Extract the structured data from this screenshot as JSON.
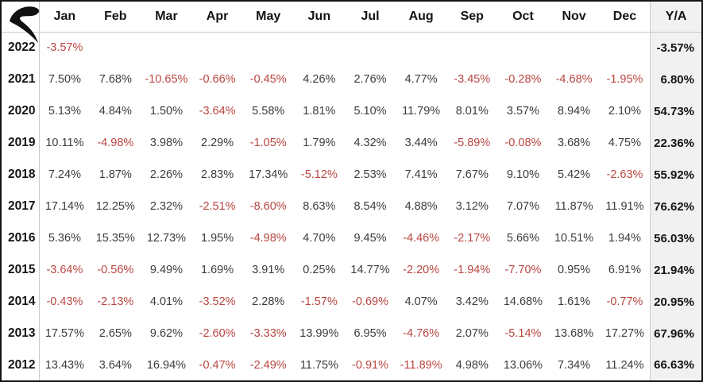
{
  "header": {
    "logo_icon": "r-swoosh-logo-icon",
    "columns": [
      "Jan",
      "Feb",
      "Mar",
      "Apr",
      "May",
      "Jun",
      "Jul",
      "Aug",
      "Sep",
      "Oct",
      "Nov",
      "Dec",
      "Y/A"
    ]
  },
  "table": {
    "rows": [
      {
        "year": "2022",
        "values": [
          "-3.57%",
          "",
          "",
          "",
          "",
          "",
          "",
          "",
          "",
          "",
          "",
          ""
        ],
        "ya": "-3.57%"
      },
      {
        "year": "2021",
        "values": [
          "7.50%",
          "7.68%",
          "-10.65%",
          "-0.66%",
          "-0.45%",
          "4.26%",
          "2.76%",
          "4.77%",
          "-3.45%",
          "-0.28%",
          "-4.68%",
          "-1.95%"
        ],
        "ya": "6.80%"
      },
      {
        "year": "2020",
        "values": [
          "5.13%",
          "4.84%",
          "1.50%",
          "-3.64%",
          "5.58%",
          "1.81%",
          "5.10%",
          "11.79%",
          "8.01%",
          "3.57%",
          "8.94%",
          "2.10%"
        ],
        "ya": "54.73%"
      },
      {
        "year": "2019",
        "values": [
          "10.11%",
          "-4.98%",
          "3.98%",
          "2.29%",
          "-1.05%",
          "1.79%",
          "4.32%",
          "3.44%",
          "-5.89%",
          "-0.08%",
          "3.68%",
          "4.75%"
        ],
        "ya": "22.36%"
      },
      {
        "year": "2018",
        "values": [
          "7.24%",
          "1.87%",
          "2.26%",
          "2.83%",
          "17.34%",
          "-5.12%",
          "2.53%",
          "7.41%",
          "7.67%",
          "9.10%",
          "5.42%",
          "-2.63%"
        ],
        "ya": "55.92%"
      },
      {
        "year": "2017",
        "values": [
          "17.14%",
          "12.25%",
          "2.32%",
          "-2.51%",
          "-8.60%",
          "8.63%",
          "8.54%",
          "4.88%",
          "3.12%",
          "7.07%",
          "11.87%",
          "11.91%"
        ],
        "ya": "76.62%"
      },
      {
        "year": "2016",
        "values": [
          "5.36%",
          "15.35%",
          "12.73%",
          "1.95%",
          "-4.98%",
          "4.70%",
          "9.45%",
          "-4.46%",
          "-2.17%",
          "5.66%",
          "10.51%",
          "1.94%"
        ],
        "ya": "56.03%"
      },
      {
        "year": "2015",
        "values": [
          "-3.64%",
          "-0.56%",
          "9.49%",
          "1.69%",
          "3.91%",
          "0.25%",
          "14.77%",
          "-2.20%",
          "-1.94%",
          "-7.70%",
          "0.95%",
          "6.91%"
        ],
        "ya": "21.94%"
      },
      {
        "year": "2014",
        "values": [
          "-0.43%",
          "-2.13%",
          "4.01%",
          "-3.52%",
          "2.28%",
          "-1.57%",
          "-0.69%",
          "4.07%",
          "3.42%",
          "14.68%",
          "1.61%",
          "-0.77%"
        ],
        "ya": "20.95%"
      },
      {
        "year": "2013",
        "values": [
          "17.57%",
          "2.65%",
          "9.62%",
          "-2.60%",
          "-3.33%",
          "13.99%",
          "6.95%",
          "-4.76%",
          "2.07%",
          "-5.14%",
          "13.68%",
          "17.27%"
        ],
        "ya": "67.96%"
      },
      {
        "year": "2012",
        "values": [
          "13.43%",
          "3.64%",
          "16.94%",
          "-0.47%",
          "-2.49%",
          "11.75%",
          "-0.91%",
          "-11.89%",
          "4.98%",
          "13.06%",
          "7.34%",
          "11.24%"
        ],
        "ya": "66.63%"
      }
    ]
  },
  "colors": {
    "negative": "#b94641",
    "value": "#3c3c3c",
    "strong": "#141414",
    "grid": "#c9c9c9",
    "outer": "#151515",
    "ya_bg": "#f1f1f1",
    "bg": "#ffffff"
  },
  "chart_data": {
    "type": "table",
    "unit": "%",
    "columns": [
      "Jan",
      "Feb",
      "Mar",
      "Apr",
      "May",
      "Jun",
      "Jul",
      "Aug",
      "Sep",
      "Oct",
      "Nov",
      "Dec",
      "Y/A"
    ],
    "rows": [
      {
        "label": "2022",
        "monthly": [
          -3.57,
          null,
          null,
          null,
          null,
          null,
          null,
          null,
          null,
          null,
          null,
          null
        ],
        "y_a": -3.57
      },
      {
        "label": "2021",
        "monthly": [
          7.5,
          7.68,
          -10.65,
          -0.66,
          -0.45,
          4.26,
          2.76,
          4.77,
          -3.45,
          -0.28,
          -4.68,
          -1.95
        ],
        "y_a": 6.8
      },
      {
        "label": "2020",
        "monthly": [
          5.13,
          4.84,
          1.5,
          -3.64,
          5.58,
          1.81,
          5.1,
          11.79,
          8.01,
          3.57,
          8.94,
          2.1
        ],
        "y_a": 54.73
      },
      {
        "label": "2019",
        "monthly": [
          10.11,
          -4.98,
          3.98,
          2.29,
          -1.05,
          1.79,
          4.32,
          3.44,
          -5.89,
          -0.08,
          3.68,
          4.75
        ],
        "y_a": 22.36
      },
      {
        "label": "2018",
        "monthly": [
          7.24,
          1.87,
          2.26,
          2.83,
          17.34,
          -5.12,
          2.53,
          7.41,
          7.67,
          9.1,
          5.42,
          -2.63
        ],
        "y_a": 55.92
      },
      {
        "label": "2017",
        "monthly": [
          17.14,
          12.25,
          2.32,
          -2.51,
          -8.6,
          8.63,
          8.54,
          4.88,
          3.12,
          7.07,
          11.87,
          11.91
        ],
        "y_a": 76.62
      },
      {
        "label": "2016",
        "monthly": [
          5.36,
          15.35,
          12.73,
          1.95,
          -4.98,
          4.7,
          9.45,
          -4.46,
          -2.17,
          5.66,
          10.51,
          1.94
        ],
        "y_a": 56.03
      },
      {
        "label": "2015",
        "monthly": [
          -3.64,
          -0.56,
          9.49,
          1.69,
          3.91,
          0.25,
          14.77,
          -2.2,
          -1.94,
          -7.7,
          0.95,
          6.91
        ],
        "y_a": 21.94
      },
      {
        "label": "2014",
        "monthly": [
          -0.43,
          -2.13,
          4.01,
          -3.52,
          2.28,
          -1.57,
          -0.69,
          4.07,
          3.42,
          14.68,
          1.61,
          -0.77
        ],
        "y_a": 20.95
      },
      {
        "label": "2013",
        "monthly": [
          17.57,
          2.65,
          9.62,
          -2.6,
          -3.33,
          13.99,
          6.95,
          -4.76,
          2.07,
          -5.14,
          13.68,
          17.27
        ],
        "y_a": 67.96
      },
      {
        "label": "2012",
        "monthly": [
          13.43,
          3.64,
          16.94,
          -0.47,
          -2.49,
          11.75,
          -0.91,
          -11.89,
          4.98,
          13.06,
          7.34,
          11.24
        ],
        "y_a": 66.63
      }
    ],
    "style": {
      "negative_color": "#b94641",
      "positive_color": "#3c3c3c",
      "ya_column_bold": true,
      "ya_column_bg": "#f1f1f1",
      "grid": "minimal"
    }
  }
}
